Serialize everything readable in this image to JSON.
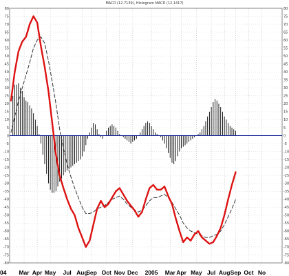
{
  "chart_data": {
    "type": "line",
    "title": "MACD (12.7139), Histogram MACD (12.1417)",
    "xlabel": "",
    "ylabel": "",
    "ylim": [
      -80,
      80
    ],
    "grid": true,
    "zero_line": 0,
    "x_tick_labels": [
      "Mar",
      "Apr",
      "May",
      "Jul",
      "Aug",
      "Sep",
      "Oct",
      "Nov",
      "Dec",
      "2005",
      "Mar",
      "Apr",
      "May",
      "Jul",
      "Aug",
      "Sep",
      "Oct",
      "No"
    ],
    "x_tick_index": [
      7,
      14,
      21,
      30,
      38,
      43,
      51,
      58,
      65,
      75,
      85,
      91,
      99,
      107,
      114,
      120,
      127,
      134
    ],
    "y_ticks": [
      80,
      75,
      70,
      65,
      60,
      55,
      50,
      45,
      40,
      35,
      30,
      25,
      20,
      15,
      10,
      5,
      0,
      -5,
      -10,
      -15,
      -20,
      -25,
      -30,
      -35,
      -40,
      -45,
      -50,
      -55,
      -60,
      -65,
      -70,
      -75,
      -80
    ],
    "left_partial_label": "04",
    "series": [
      {
        "role": "macd",
        "color": "#dd1111",
        "style": "solid",
        "x": [
          0,
          2,
          4,
          6,
          8,
          10,
          12,
          14,
          16,
          18,
          20,
          22,
          24,
          26,
          28,
          30,
          32,
          34,
          36,
          38,
          40,
          42,
          44,
          46,
          48,
          50,
          52,
          54,
          56,
          58,
          60,
          62,
          64,
          66,
          68,
          70,
          72,
          74,
          76,
          78,
          80,
          82,
          84,
          86,
          88,
          90,
          92,
          94,
          96,
          98,
          100,
          102,
          104,
          106,
          108,
          110,
          112,
          114,
          116,
          118,
          120
        ],
        "values": [
          22,
          40,
          53,
          59,
          62,
          70,
          75,
          71,
          56,
          43,
          28,
          8,
          -12,
          -25,
          -33,
          -40,
          -46,
          -50,
          -58,
          -64,
          -70,
          -66,
          -56,
          -46,
          -41,
          -45,
          -43,
          -39,
          -35,
          -33,
          -37,
          -41,
          -44,
          -47,
          -51,
          -48,
          -40,
          -33,
          -31,
          -34,
          -34,
          -32,
          -38,
          -43,
          -52,
          -60,
          -67,
          -64,
          -66,
          -62,
          -60,
          -64,
          -66,
          -68,
          -67,
          -63,
          -58,
          -50,
          -40,
          -31,
          -23
        ]
      },
      {
        "role": "signal",
        "color": "#333333",
        "style": "dashed",
        "x": [
          0,
          2,
          4,
          6,
          8,
          10,
          12,
          14,
          16,
          18,
          20,
          22,
          24,
          26,
          28,
          30,
          32,
          34,
          36,
          38,
          40,
          42,
          44,
          46,
          48,
          50,
          52,
          54,
          56,
          58,
          60,
          62,
          64,
          66,
          68,
          70,
          72,
          74,
          76,
          78,
          80,
          82,
          84,
          86,
          88,
          90,
          92,
          94,
          96,
          98,
          100,
          102,
          104,
          106,
          108,
          110,
          112,
          114,
          116,
          118,
          120
        ],
        "values": [
          2,
          12,
          22,
          30,
          38,
          46,
          55,
          60,
          62,
          58,
          47,
          34,
          20,
          4,
          -8,
          -18,
          -26,
          -33,
          -39,
          -45,
          -49,
          -49,
          -48,
          -46,
          -45,
          -44,
          -42,
          -40,
          -39,
          -38,
          -40,
          -43,
          -45,
          -47,
          -48,
          -47,
          -44,
          -41,
          -39,
          -39,
          -38,
          -37,
          -39,
          -42,
          -46,
          -50,
          -55,
          -58,
          -60,
          -61,
          -62,
          -63,
          -64,
          -64,
          -63,
          -62,
          -60,
          -56,
          -51,
          -46,
          -40
        ]
      }
    ],
    "histogram": {
      "color": "#000000",
      "x": [
        1,
        2,
        3,
        4,
        5,
        6,
        7,
        8,
        9,
        10,
        11,
        12,
        13,
        14,
        15,
        16,
        17,
        18,
        19,
        20,
        21,
        22,
        23,
        24,
        25,
        26,
        27,
        28,
        29,
        30,
        31,
        32,
        33,
        34,
        35,
        36,
        37,
        38,
        39,
        40,
        41,
        42,
        43,
        44,
        45,
        46,
        47,
        48,
        49,
        50,
        51,
        52,
        53,
        54,
        55,
        56,
        57,
        58,
        59,
        60,
        61,
        62,
        63,
        64,
        65,
        66,
        67,
        68,
        69,
        70,
        71,
        72,
        73,
        74,
        75,
        76,
        77,
        78,
        79,
        80,
        81,
        82,
        83,
        84,
        85,
        86,
        87,
        88,
        89,
        90,
        91,
        92,
        93,
        94,
        95,
        96,
        97,
        98,
        99,
        100,
        101,
        102,
        103,
        104,
        105,
        106,
        107,
        108,
        109,
        110,
        111,
        112,
        113,
        114,
        115,
        116,
        117,
        118,
        119,
        120
      ],
      "values": [
        25,
        32,
        32,
        33,
        30,
        28,
        24,
        22,
        21,
        19,
        17,
        14,
        10,
        6,
        1,
        -5,
        -12,
        -18,
        -24,
        -30,
        -34,
        -36,
        -36,
        -35,
        -32,
        -29,
        -27,
        -25,
        -23,
        -22,
        -21,
        -20,
        -19,
        -18,
        -17,
        -16,
        -15,
        -13,
        -10,
        -6,
        -2,
        2,
        5,
        8,
        7,
        4,
        1,
        -1,
        -2,
        0,
        3,
        5,
        6,
        7,
        6,
        5,
        3,
        1,
        0,
        -1,
        -2,
        -3,
        -4,
        -5,
        -4,
        -3,
        -2,
        0,
        2,
        4,
        6,
        8,
        9,
        8,
        6,
        4,
        2,
        1,
        0,
        -1,
        -3,
        -5,
        -8,
        -11,
        -14,
        -17,
        -18,
        -16,
        -13,
        -10,
        -8,
        -7,
        -6,
        -5,
        -4,
        -3,
        -2,
        -1,
        0,
        1,
        2,
        4,
        6,
        9,
        12,
        15,
        18,
        21,
        23,
        22,
        20,
        18,
        15,
        12,
        10,
        8,
        6,
        5,
        4,
        3
      ]
    }
  }
}
